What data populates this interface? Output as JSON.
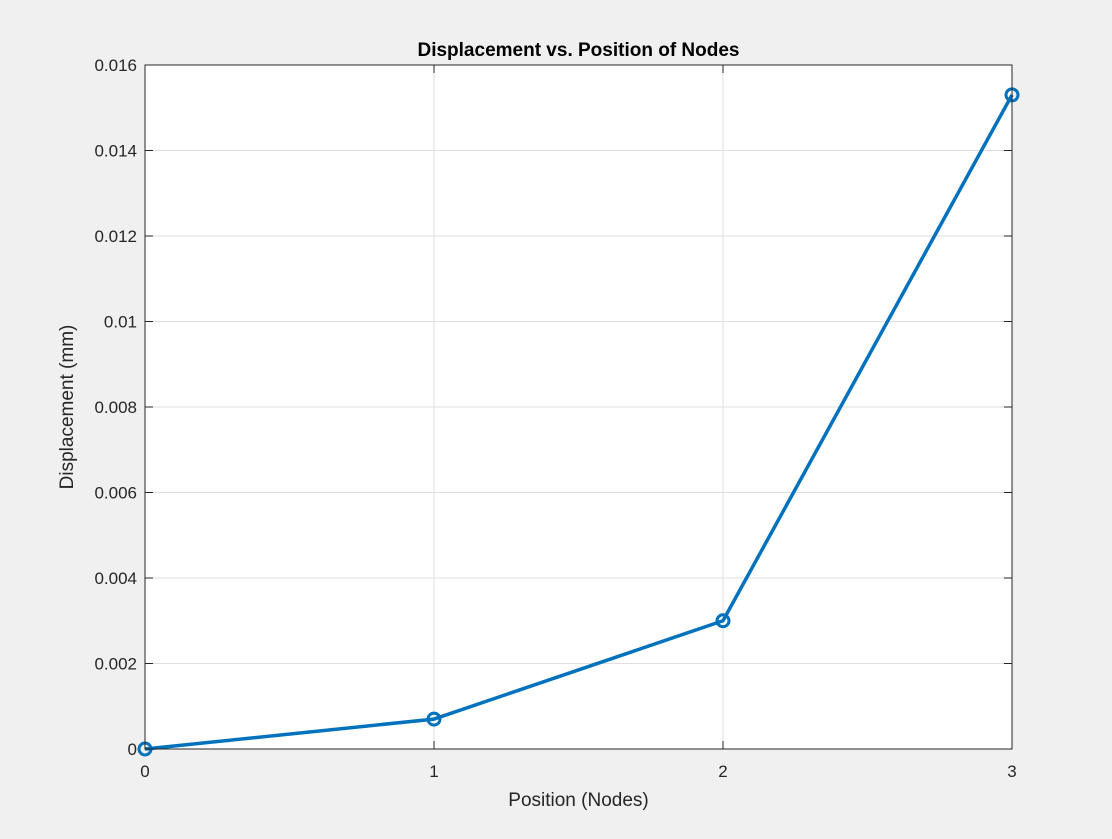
{
  "figure": {
    "background": "#f0f0f0",
    "axes_background": "#ffffff",
    "axes_color": "#262626",
    "grid_color": "#dfdfdf"
  },
  "chart_data": {
    "type": "line",
    "title": "Displacement vs. Position of Nodes",
    "xlabel": "Position (Nodes)",
    "ylabel": "Displacement (mm)",
    "xlim": [
      0,
      3
    ],
    "ylim": [
      0,
      0.016
    ],
    "xticks": [
      0,
      1,
      2,
      3
    ],
    "xtick_labels": [
      "0",
      "1",
      "2",
      "3"
    ],
    "yticks": [
      0,
      0.002,
      0.004,
      0.006,
      0.008,
      0.01,
      0.012,
      0.014,
      0.016
    ],
    "ytick_labels": [
      "0",
      "0.002",
      "0.004",
      "0.006",
      "0.008",
      "0.01",
      "0.012",
      "0.014",
      "0.016"
    ],
    "grid": true,
    "legend": "none",
    "series": [
      {
        "x": [
          0,
          1,
          2,
          3
        ],
        "y": [
          0,
          0.0007,
          0.003,
          0.0153
        ],
        "color": "#0072bd",
        "marker": "circle"
      }
    ]
  }
}
